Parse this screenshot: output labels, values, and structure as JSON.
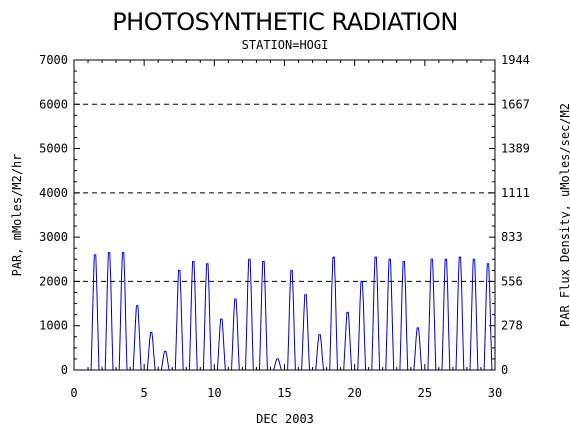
{
  "chart_data": {
    "type": "line",
    "title": "PHOTOSYNTHETIC RADIATION",
    "subtitle": "STATION=HOGI",
    "xlabel": "DEC 2003",
    "ylabel": "PAR, mMoles/M2/hr",
    "y2label": "PAR Flux Density, uMoles/sec/M2",
    "xlim": [
      0,
      30
    ],
    "ylim": [
      0,
      7000
    ],
    "x_ticks": [
      "0",
      "5",
      "10",
      "15",
      "20",
      "25",
      "30"
    ],
    "y_ticks": [
      "0",
      "1000",
      "2000",
      "3000",
      "4000",
      "5000",
      "6000",
      "7000"
    ],
    "y2_ticks": [
      "0",
      "278",
      "556",
      "833",
      "1111",
      "1389",
      "1667",
      "1944"
    ],
    "grid": "dashed at 2000, 4000, 6000",
    "series_color": "#0000cc",
    "daily_peaks": [
      {
        "day": 1,
        "value": 2600
      },
      {
        "day": 2,
        "value": 2650
      },
      {
        "day": 3,
        "value": 2650
      },
      {
        "day": 4,
        "value": 1450
      },
      {
        "day": 5,
        "value": 850
      },
      {
        "day": 6,
        "value": 420
      },
      {
        "day": 7,
        "value": 2250
      },
      {
        "day": 8,
        "value": 2450
      },
      {
        "day": 9,
        "value": 2400
      },
      {
        "day": 10,
        "value": 1150
      },
      {
        "day": 11,
        "value": 1600
      },
      {
        "day": 12,
        "value": 2500
      },
      {
        "day": 13,
        "value": 2450
      },
      {
        "day": 14,
        "value": 250
      },
      {
        "day": 15,
        "value": 2250
      },
      {
        "day": 16,
        "value": 1700
      },
      {
        "day": 17,
        "value": 800
      },
      {
        "day": 18,
        "value": 2550
      },
      {
        "day": 19,
        "value": 1300
      },
      {
        "day": 20,
        "value": 2000
      },
      {
        "day": 21,
        "value": 2550
      },
      {
        "day": 22,
        "value": 2500
      },
      {
        "day": 23,
        "value": 2450
      },
      {
        "day": 24,
        "value": 950
      },
      {
        "day": 25,
        "value": 2500
      },
      {
        "day": 26,
        "value": 2500
      },
      {
        "day": 27,
        "value": 2550
      },
      {
        "day": 28,
        "value": 2500
      },
      {
        "day": 29,
        "value": 2400
      }
    ]
  }
}
